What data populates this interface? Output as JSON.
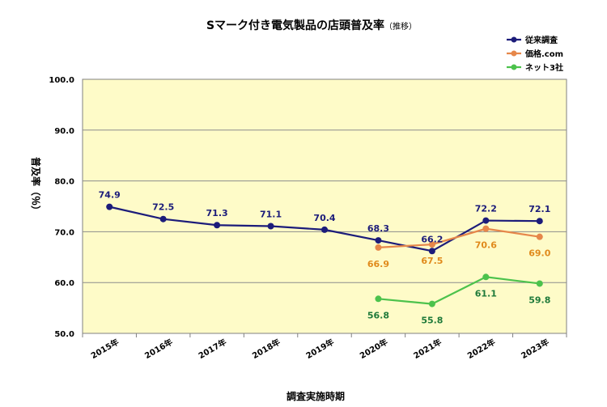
{
  "chart_data": {
    "type": "line",
    "title": "Sマーク付き電気製品の店頭普及率",
    "title_note": "（推移）",
    "xlabel": "調査実施時期",
    "ylabel": "普及率（％）",
    "ylim": [
      50,
      100
    ],
    "yticks": [
      "50.0",
      "60.0",
      "70.0",
      "80.0",
      "90.0",
      "100.0"
    ],
    "categories": [
      "2015年",
      "2016年",
      "2017年",
      "2018年",
      "2019年",
      "2020年",
      "2021年",
      "2022年",
      "2023年"
    ],
    "grid": true,
    "legend_position": "top-right",
    "colors": {
      "plot_bg": "#fefbc8",
      "grid": "#8c8c8c",
      "border": "#808080"
    },
    "series": [
      {
        "name": "従来調査",
        "color": "#1c1c7a",
        "label_color": "#1c1c7a",
        "label_position": "above",
        "values": [
          74.9,
          72.5,
          71.3,
          71.1,
          70.4,
          68.3,
          66.2,
          72.2,
          72.1
        ],
        "labels": [
          "74.9",
          "72.5",
          "71.3",
          "71.1",
          "70.4",
          "68.3",
          "66.2",
          "72.2",
          "72.1"
        ]
      },
      {
        "name": "価格.com",
        "color": "#e6874a",
        "label_color": "#e08a1c",
        "label_position": "below",
        "values": [
          null,
          null,
          null,
          null,
          null,
          66.9,
          67.5,
          70.6,
          69.0
        ],
        "labels": [
          null,
          null,
          null,
          null,
          null,
          "66.9",
          "67.5",
          "70.6",
          "69.0"
        ]
      },
      {
        "name": "ネット3社",
        "color": "#4cc24c",
        "label_color": "#1f7a3a",
        "label_position": "below",
        "values": [
          null,
          null,
          null,
          null,
          null,
          56.8,
          55.8,
          61.1,
          59.8
        ],
        "labels": [
          null,
          null,
          null,
          null,
          null,
          "56.8",
          "55.8",
          "61.1",
          "59.8"
        ]
      }
    ]
  }
}
